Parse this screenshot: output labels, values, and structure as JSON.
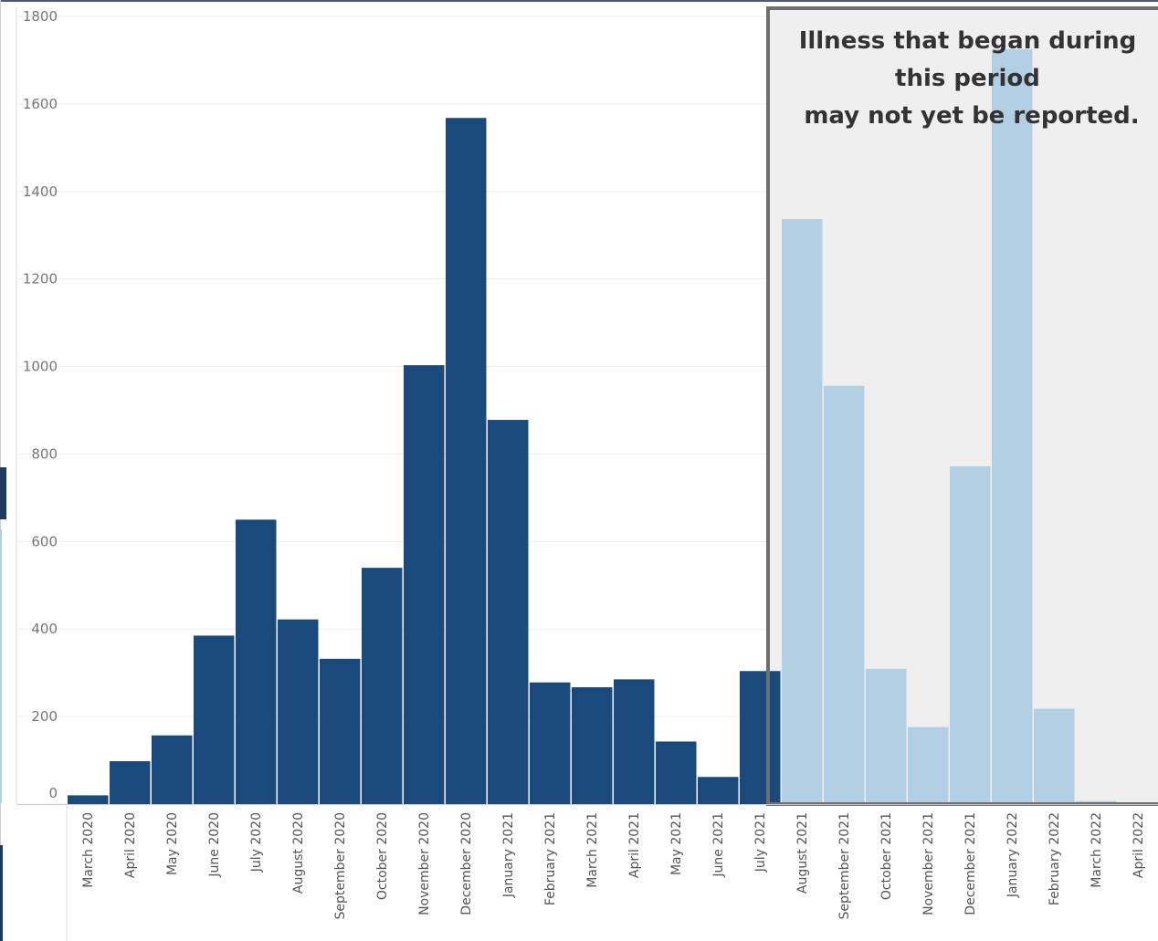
{
  "chart_data": {
    "type": "bar",
    "title": "",
    "xlabel": "",
    "ylabel": "",
    "ylim": [
      0,
      1800
    ],
    "yticks": [
      "0",
      "200",
      "400",
      "600",
      "800",
      "1000",
      "1200",
      "1400",
      "1600",
      "1800"
    ],
    "grid": true,
    "categories": [
      "March 2020",
      "April 2020",
      "May 2020",
      "June 2020",
      "July 2020",
      "August 2020",
      "September 2020",
      "October 2020",
      "November 2020",
      "December 2020",
      "January 2021",
      "February 2021",
      "March 2021",
      "April 2021",
      "May 2021",
      "June 2021",
      "July 2021",
      "August 2021",
      "September 2021",
      "October 2021",
      "November 2021",
      "December 2021",
      "January 2022",
      "February 2022",
      "March 2022",
      "April 2022"
    ],
    "values": [
      20,
      98,
      157,
      385,
      650,
      422,
      332,
      540,
      1003,
      1568,
      878,
      278,
      267,
      285,
      143,
      62,
      304,
      1337,
      956,
      309,
      176,
      772,
      1725,
      218,
      7,
      0
    ],
    "colors": {
      "reported": "#1a4a7c",
      "incomplete": "#b3cfe4",
      "shade": "#efefef",
      "box": "#6e6e6e"
    },
    "incomplete_from_index": 17,
    "annotation": {
      "lines": [
        "Illness that began during",
        "this period",
        "may not yet be reported."
      ]
    }
  }
}
